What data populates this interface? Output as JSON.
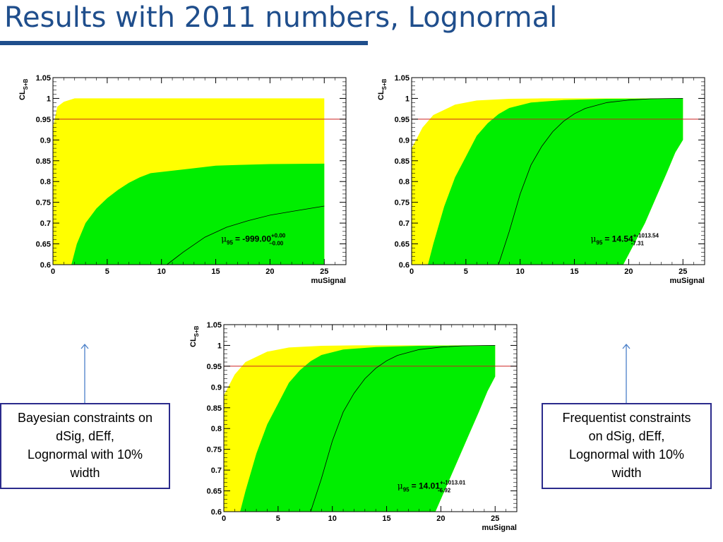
{
  "slide": {
    "title": "Results with 2011 numbers, Lognormal",
    "accent": "#1f4e8c"
  },
  "annotations": {
    "left": {
      "lines": [
        "Bayesian constraints on",
        "dSig, dEff,",
        "Lognormal with 10%",
        "width"
      ]
    },
    "right": {
      "lines": [
        "Frequentist constraints",
        "on dSig, dEff,",
        "Lognormal with 10%",
        "width"
      ]
    },
    "arrow_color": "#4a7fc8",
    "border_color": "#2b2b8c"
  },
  "colors": {
    "yellow": "#ffff00",
    "green": "#00ee00",
    "ref_line": "#cc2222",
    "curve": "#000000"
  },
  "chart_data": [
    {
      "type": "area",
      "id": "top-left",
      "xlabel": "muSignal",
      "ylabel": "CL",
      "ylabel_sub": "S+B",
      "xlim": [
        0,
        27
      ],
      "ylim": [
        0.6,
        1.05
      ],
      "xticks": [
        0,
        5,
        10,
        15,
        20,
        25
      ],
      "yticks": [
        0.6,
        0.65,
        0.7,
        0.75,
        0.8,
        0.85,
        0.9,
        0.95,
        1,
        1.05
      ],
      "xtick_labels": [
        "0",
        "5",
        "10",
        "15",
        "20",
        "25"
      ],
      "ytick_labels": [
        "0.6",
        "0.65",
        "0.7",
        "0.75",
        "0.8",
        "0.85",
        "0.9",
        "0.95",
        "1",
        "1.05"
      ],
      "reference_line": 0.95,
      "yellow_upper": [
        [
          0,
          0.93
        ],
        [
          0.4,
          0.98
        ],
        [
          1,
          0.992
        ],
        [
          2,
          1
        ],
        [
          25,
          1
        ]
      ],
      "yellow_lower": [
        [
          0,
          0.6
        ],
        [
          25,
          0.6
        ]
      ],
      "green_upper": [
        [
          1.7,
          0.6
        ],
        [
          2.2,
          0.65
        ],
        [
          3,
          0.7
        ],
        [
          4,
          0.735
        ],
        [
          5,
          0.76
        ],
        [
          6,
          0.78
        ],
        [
          7,
          0.797
        ],
        [
          8,
          0.81
        ],
        [
          9,
          0.82
        ],
        [
          11,
          0.826
        ],
        [
          13,
          0.832
        ],
        [
          15,
          0.838
        ],
        [
          17,
          0.84
        ],
        [
          20,
          0.842
        ],
        [
          25,
          0.843
        ]
      ],
      "green_lower": [
        [
          1.7,
          0.6
        ],
        [
          25,
          0.6
        ]
      ],
      "curve": [
        [
          10.5,
          0.6
        ],
        [
          12,
          0.63
        ],
        [
          14,
          0.666
        ],
        [
          16,
          0.69
        ],
        [
          18,
          0.706
        ],
        [
          20,
          0.719
        ],
        [
          22,
          0.728
        ],
        [
          25,
          0.741
        ]
      ],
      "mu_label": {
        "symbol": "μ",
        "sub": "95",
        "value": "= -999.00",
        "sup": "+0.00",
        "inf": "−0.00"
      },
      "mu_pos": [
        15.5,
        0.655
      ]
    },
    {
      "type": "area",
      "id": "top-right",
      "xlabel": "muSignal",
      "ylabel": "CL",
      "ylabel_sub": "S+B",
      "xlim": [
        0,
        27
      ],
      "ylim": [
        0.6,
        1.05
      ],
      "xticks": [
        0,
        5,
        10,
        15,
        20,
        25
      ],
      "yticks": [
        0.6,
        0.65,
        0.7,
        0.75,
        0.8,
        0.85,
        0.9,
        0.95,
        1,
        1.05
      ],
      "xtick_labels": [
        "0",
        "5",
        "10",
        "15",
        "20",
        "25"
      ],
      "ytick_labels": [
        "0.6",
        "0.65",
        "0.7",
        "0.75",
        "0.8",
        "0.85",
        "0.9",
        "0.95",
        "1",
        "1.05"
      ],
      "reference_line": 0.95,
      "yellow_upper": [
        [
          0,
          0.88
        ],
        [
          1,
          0.93
        ],
        [
          2,
          0.96
        ],
        [
          4,
          0.985
        ],
        [
          6,
          0.995
        ],
        [
          9,
          0.999
        ],
        [
          12,
          1
        ],
        [
          25,
          1
        ]
      ],
      "yellow_lower": [
        [
          0,
          0.6
        ],
        [
          19.5,
          0.6
        ],
        [
          20.5,
          0.65
        ],
        [
          21.5,
          0.7
        ],
        [
          22.5,
          0.76
        ],
        [
          23.5,
          0.82
        ],
        [
          24.3,
          0.87
        ],
        [
          25,
          0.9
        ]
      ],
      "green_upper": [
        [
          1.5,
          0.6
        ],
        [
          2,
          0.65
        ],
        [
          3,
          0.74
        ],
        [
          4,
          0.81
        ],
        [
          5,
          0.86
        ],
        [
          6,
          0.91
        ],
        [
          7,
          0.94
        ],
        [
          8,
          0.962
        ],
        [
          9,
          0.977
        ],
        [
          11,
          0.99
        ],
        [
          14,
          0.996
        ],
        [
          18,
          0.999
        ],
        [
          25,
          1
        ]
      ],
      "green_lower": [
        [
          1.5,
          0.6
        ],
        [
          12,
          0.6
        ],
        [
          14,
          0.6
        ],
        [
          15,
          0.6
        ],
        [
          16,
          0.6
        ],
        [
          17,
          0.6
        ],
        [
          18,
          0.6
        ],
        [
          19.5,
          0.6
        ],
        [
          20.5,
          0.65
        ],
        [
          21.5,
          0.7
        ],
        [
          22.5,
          0.76
        ],
        [
          23.5,
          0.82
        ],
        [
          24.3,
          0.87
        ],
        [
          25,
          0.9
        ]
      ],
      "curve": [
        [
          8,
          0.6
        ],
        [
          9,
          0.68
        ],
        [
          10,
          0.77
        ],
        [
          11,
          0.84
        ],
        [
          12,
          0.885
        ],
        [
          13,
          0.92
        ],
        [
          14,
          0.945
        ],
        [
          15,
          0.963
        ],
        [
          16,
          0.976
        ],
        [
          18,
          0.99
        ],
        [
          20,
          0.996
        ],
        [
          22,
          0.999
        ],
        [
          25,
          1
        ]
      ],
      "mu_label": {
        "symbol": "μ",
        "sub": "95",
        "value": "= 14.54",
        "sup": "+-1013.54",
        "inf": "-7.31"
      },
      "mu_pos": [
        16.5,
        0.655
      ]
    },
    {
      "type": "area",
      "id": "bottom-center",
      "xlabel": "muSignal",
      "ylabel": "CL",
      "ylabel_sub": "S+B",
      "xlim": [
        0,
        27
      ],
      "ylim": [
        0.6,
        1.05
      ],
      "xticks": [
        0,
        5,
        10,
        15,
        20,
        25
      ],
      "yticks": [
        0.6,
        0.65,
        0.7,
        0.75,
        0.8,
        0.85,
        0.9,
        0.95,
        1,
        1.05
      ],
      "xtick_labels": [
        "0",
        "5",
        "10",
        "15",
        "20",
        "25"
      ],
      "ytick_labels": [
        "0.6",
        "0.65",
        "0.7",
        "0.75",
        "0.8",
        "0.85",
        "0.9",
        "0.95",
        "1",
        "1.05"
      ],
      "reference_line": 0.95,
      "yellow_upper": [
        [
          0,
          0.88
        ],
        [
          1,
          0.93
        ],
        [
          2,
          0.96
        ],
        [
          4,
          0.985
        ],
        [
          6,
          0.995
        ],
        [
          9,
          0.999
        ],
        [
          12,
          1
        ],
        [
          25,
          1
        ]
      ],
      "yellow_lower": [
        [
          0,
          0.6
        ],
        [
          19.5,
          0.6
        ],
        [
          20.5,
          0.66
        ],
        [
          21.5,
          0.72
        ],
        [
          22.5,
          0.78
        ],
        [
          23.5,
          0.84
        ],
        [
          24.3,
          0.89
        ],
        [
          25,
          0.925
        ]
      ],
      "green_upper": [
        [
          1.5,
          0.6
        ],
        [
          2,
          0.65
        ],
        [
          3,
          0.74
        ],
        [
          4,
          0.81
        ],
        [
          5,
          0.86
        ],
        [
          6,
          0.91
        ],
        [
          7,
          0.94
        ],
        [
          8,
          0.962
        ],
        [
          9,
          0.977
        ],
        [
          11,
          0.99
        ],
        [
          14,
          0.996
        ],
        [
          18,
          0.999
        ],
        [
          25,
          1
        ]
      ],
      "green_lower": [
        [
          1.5,
          0.6
        ],
        [
          19.5,
          0.6
        ],
        [
          20.5,
          0.66
        ],
        [
          21.5,
          0.72
        ],
        [
          22.5,
          0.78
        ],
        [
          23.5,
          0.84
        ],
        [
          24.3,
          0.89
        ],
        [
          25,
          0.925
        ]
      ],
      "curve": [
        [
          8,
          0.6
        ],
        [
          9,
          0.68
        ],
        [
          10,
          0.77
        ],
        [
          11,
          0.84
        ],
        [
          12,
          0.885
        ],
        [
          13,
          0.92
        ],
        [
          14,
          0.945
        ],
        [
          15,
          0.963
        ],
        [
          16,
          0.976
        ],
        [
          18,
          0.99
        ],
        [
          20,
          0.996
        ],
        [
          22,
          0.999
        ],
        [
          25,
          1
        ]
      ],
      "mu_label": {
        "symbol": "μ",
        "sub": "95",
        "value": "= 14.01",
        "sup": "+-1013.01",
        "inf": "-6.92"
      },
      "mu_pos": [
        16,
        0.655
      ]
    }
  ]
}
